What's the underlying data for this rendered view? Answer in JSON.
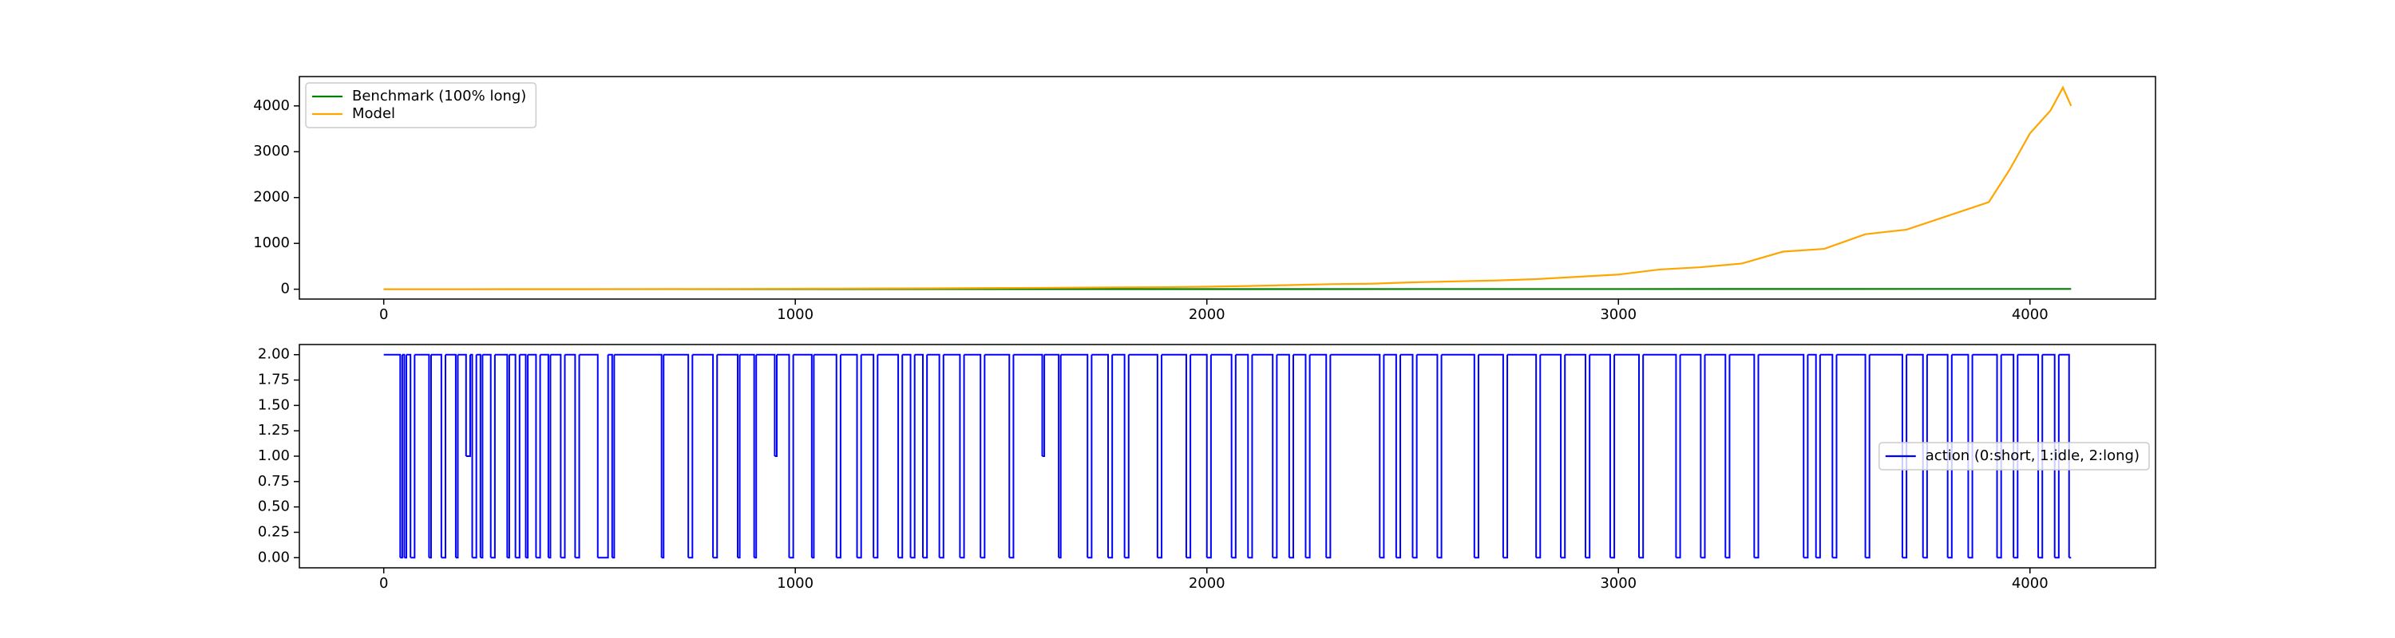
{
  "chart_data": [
    {
      "type": "line",
      "xlim": [
        -205,
        4305
      ],
      "xticks": [
        0,
        1000,
        2000,
        3000,
        4000
      ],
      "ylim": [
        -215,
        4640
      ],
      "yticks": [
        0,
        1000,
        2000,
        3000,
        4000
      ],
      "legend": "upper left",
      "series": [
        {
          "name": "Benchmark (100% long)",
          "color": "#008000",
          "x": [
            0,
            1000,
            2000,
            3000,
            4100
          ],
          "values": [
            1,
            1.5,
            2.5,
            4,
            6
          ]
        },
        {
          "name": "Model",
          "color": "#ffa500",
          "x": [
            0,
            100,
            200,
            300,
            400,
            500,
            600,
            700,
            800,
            900,
            1000,
            1100,
            1200,
            1300,
            1400,
            1500,
            1600,
            1700,
            1800,
            1900,
            2000,
            2100,
            2200,
            2300,
            2400,
            2500,
            2600,
            2700,
            2800,
            2900,
            3000,
            3100,
            3200,
            3300,
            3400,
            3500,
            3600,
            3700,
            3800,
            3900,
            3950,
            4000,
            4050,
            4080,
            4100
          ],
          "values": [
            1,
            1.2,
            1.5,
            2,
            2.5,
            3,
            4,
            5,
            6,
            8,
            10,
            12,
            15,
            18,
            22,
            26,
            30,
            35,
            40,
            45,
            55,
            70,
            90,
            110,
            120,
            150,
            170,
            190,
            220,
            270,
            320,
            430,
            480,
            560,
            820,
            880,
            1200,
            1300,
            1600,
            1900,
            2600,
            3400,
            3900,
            4400,
            4000
          ]
        }
      ]
    },
    {
      "type": "line",
      "drawstyle": "steps-post",
      "xlim": [
        -205,
        4305
      ],
      "xticks": [
        0,
        1000,
        2000,
        3000,
        4000
      ],
      "ylim": [
        -0.1,
        2.1
      ],
      "yticks": [
        {
          "value": 0,
          "label": "0.00"
        },
        {
          "value": 0.25,
          "label": "0.25"
        },
        {
          "value": 0.5,
          "label": "0.50"
        },
        {
          "value": 0.75,
          "label": "0.75"
        },
        {
          "value": 1,
          "label": "1.00"
        },
        {
          "value": 1.25,
          "label": "1.25"
        },
        {
          "value": 1.5,
          "label": "1.50"
        },
        {
          "value": 1.75,
          "label": "1.75"
        },
        {
          "value": 2,
          "label": "2.00"
        }
      ],
      "legend": "center right",
      "series": [
        {
          "name": "action (0:short, 1:idle, 2:long)",
          "color": "#0000ff",
          "x": [
            0,
            40,
            45,
            50,
            55,
            65,
            75,
            110,
            115,
            140,
            150,
            175,
            180,
            200,
            210,
            215,
            225,
            235,
            240,
            260,
            270,
            300,
            305,
            320,
            330,
            345,
            350,
            370,
            380,
            400,
            405,
            430,
            440,
            465,
            475,
            520,
            545,
            555,
            560,
            675,
            680,
            740,
            750,
            800,
            810,
            860,
            865,
            900,
            905,
            950,
            955,
            985,
            995,
            1040,
            1045,
            1100,
            1110,
            1150,
            1160,
            1190,
            1200,
            1250,
            1260,
            1280,
            1290,
            1310,
            1320,
            1350,
            1360,
            1400,
            1410,
            1450,
            1460,
            1520,
            1530,
            1600,
            1605,
            1640,
            1645,
            1710,
            1720,
            1760,
            1770,
            1800,
            1810,
            1880,
            1890,
            1950,
            1960,
            2000,
            2010,
            2060,
            2070,
            2100,
            2110,
            2160,
            2170,
            2200,
            2210,
            2240,
            2250,
            2290,
            2300,
            2420,
            2430,
            2460,
            2470,
            2500,
            2510,
            2560,
            2570,
            2650,
            2660,
            2720,
            2730,
            2800,
            2810,
            2860,
            2870,
            2920,
            2930,
            2980,
            2990,
            3050,
            3060,
            3140,
            3150,
            3200,
            3210,
            3260,
            3270,
            3330,
            3340,
            3450,
            3460,
            3480,
            3490,
            3520,
            3530,
            3600,
            3610,
            3690,
            3700,
            3740,
            3750,
            3800,
            3810,
            3850,
            3860,
            3920,
            3930,
            3960,
            3970,
            4020,
            4030,
            4060,
            4070,
            4095,
            4100
          ],
          "values": [
            2,
            0,
            2,
            0,
            2,
            0,
            2,
            0,
            2,
            0,
            2,
            0,
            2,
            1,
            2,
            0,
            2,
            0,
            2,
            0,
            2,
            0,
            2,
            0,
            2,
            0,
            2,
            0,
            2,
            0,
            2,
            0,
            2,
            0,
            2,
            0,
            2,
            0,
            2,
            0,
            2,
            0,
            2,
            0,
            2,
            0,
            2,
            0,
            2,
            1,
            2,
            0,
            2,
            0,
            2,
            0,
            2,
            0,
            2,
            0,
            2,
            0,
            2,
            0,
            2,
            0,
            2,
            0,
            2,
            0,
            2,
            0,
            2,
            0,
            2,
            1,
            2,
            0,
            2,
            0,
            2,
            0,
            2,
            0,
            2,
            0,
            2,
            0,
            2,
            0,
            2,
            0,
            2,
            0,
            2,
            0,
            2,
            0,
            2,
            0,
            2,
            0,
            2,
            0,
            2,
            0,
            2,
            0,
            2,
            0,
            2,
            0,
            2,
            0,
            2,
            0,
            2,
            0,
            2,
            0,
            2,
            0,
            2,
            0,
            2,
            0,
            2,
            0,
            2,
            0,
            2,
            0,
            2,
            0,
            2,
            0,
            2,
            0,
            2,
            0,
            2,
            0,
            2,
            0,
            2,
            0,
            2,
            0,
            2,
            0,
            2,
            0,
            2,
            0,
            2,
            0,
            2,
            0,
            0
          ]
        }
      ]
    }
  ]
}
